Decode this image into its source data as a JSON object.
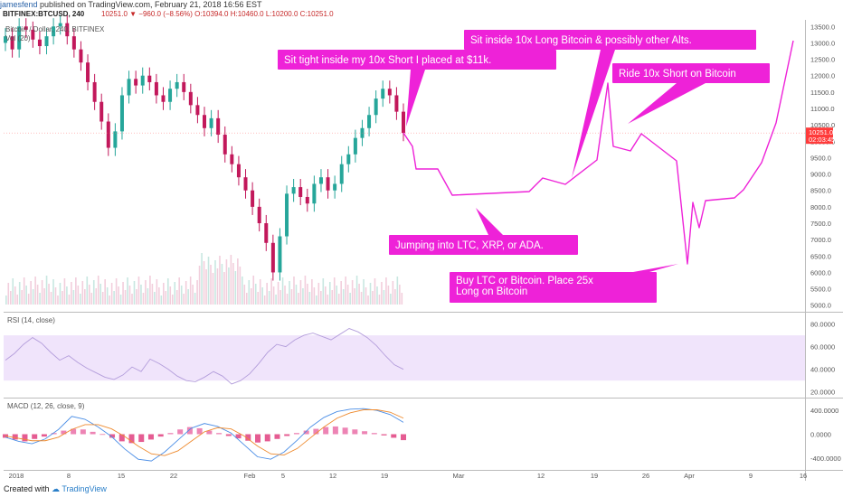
{
  "header": {
    "author": "jamesfend",
    "published": "published on TradingView.com, February 21, 2018 16:56 EST",
    "symbol": "BITFINEX:BTCUSD, 240",
    "stats": "10251.0 ▼ −960.0 (−8.56%) O:10394.0 H:10460.0 L:10200.0 C:10251.0"
  },
  "legend": {
    "series": "Bitcoin / Dollar, 240, BITFINEX",
    "volume": "Vol (20)",
    "rsi": "RSI (14, close)",
    "macd": "MACD (12, 26, close, 9)"
  },
  "price_badge": {
    "value": "10251.0",
    "countdown": "02:03:45"
  },
  "annotations": [
    "Sit tight inside my 10x Short I placed at $11k.",
    "Sit inside 10x Long Bitcoin & possibly other Alts.",
    "Ride 10x Short on Bitcoin",
    "Jumping into LTC, XRP, or ADA.",
    "Buy LTC or Bitcoin. Place 25x Long on Bitcoin"
  ],
  "footer": {
    "created": "Created with",
    "brand": "TradingView"
  },
  "colors": {
    "up": "#26a69a",
    "down": "#c2185b",
    "annotation": "#ee22d8",
    "rsi_band": "#f0e4fb",
    "axis_text": "#555555"
  },
  "chart_data": [
    {
      "type": "line",
      "title": "Bitcoin / Dollar, 240, BITFINEX",
      "y_ticks": [
        13500,
        13000,
        12500,
        12000,
        11500,
        11000,
        10500,
        10000,
        9500,
        9000,
        8500,
        8000,
        7500,
        7000,
        6500,
        6000,
        5500,
        5000
      ],
      "x_tick_labels": [
        "2018",
        "8",
        "15",
        "22",
        "Feb",
        "5",
        "12",
        "19",
        "Mar",
        "12",
        "19",
        "26",
        "Apr",
        "9",
        "16"
      ],
      "ylim": [
        4800,
        13700
      ],
      "last_price": 10251.0,
      "series": [
        {
          "values": [
            13200,
            12800,
            13500,
            13400,
            13100,
            12900,
            13200,
            13500,
            13600,
            13200,
            12800,
            12400,
            11800,
            11200,
            10600,
            9800,
            10300,
            11400,
            11900,
            11700,
            12000,
            11800,
            11400,
            11200,
            11600,
            11800,
            11500,
            11100,
            10800,
            10400,
            10700,
            10200,
            9600,
            9300,
            8900,
            8500,
            8000,
            7500,
            6900,
            6000,
            7100,
            8400,
            8600,
            8300,
            8100,
            8700,
            8900,
            8500,
            8700,
            9300,
            9600,
            10100,
            10400,
            10800,
            11300,
            11600,
            11400,
            10900,
            10251
          ]
        }
      ]
    },
    {
      "type": "line",
      "title": "RSI (14, close)",
      "y_ticks": [
        80,
        60,
        40,
        20
      ],
      "ylim": [
        15,
        90
      ],
      "band": [
        30,
        70
      ],
      "series": [
        {
          "values": [
            48,
            54,
            62,
            68,
            63,
            55,
            48,
            52,
            46,
            41,
            37,
            33,
            31,
            35,
            42,
            38,
            49,
            45,
            40,
            34,
            30,
            29,
            33,
            38,
            34,
            27,
            30,
            36,
            45,
            55,
            62,
            60,
            66,
            70,
            72,
            69,
            66,
            71,
            76,
            73,
            68,
            61,
            52,
            44,
            40
          ]
        }
      ]
    },
    {
      "type": "bar",
      "title": "MACD (12, 26, close, 9)",
      "y_ticks": [
        400,
        0,
        -400
      ],
      "ylim": [
        -600,
        600
      ],
      "histogram": [
        -60,
        -90,
        -120,
        -80,
        -40,
        20,
        60,
        90,
        80,
        40,
        -10,
        -60,
        -120,
        -150,
        -130,
        -90,
        -40,
        20,
        80,
        120,
        100,
        60,
        20,
        -30,
        -70,
        -110,
        -140,
        -120,
        -80,
        -30,
        20,
        60,
        90,
        120,
        130,
        110,
        80,
        50,
        20,
        -20,
        -60,
        -100
      ],
      "series": [
        {
          "name": "MACD",
          "values": [
            -50,
            -120,
            -160,
            -80,
            80,
            300,
            250,
            120,
            -40,
            -250,
            -420,
            -450,
            -300,
            -100,
            100,
            180,
            130,
            20,
            -180,
            -380,
            -420,
            -300,
            -100,
            120,
            280,
            380,
            420,
            430,
            400,
            330,
            200
          ]
        },
        {
          "name": "Signal",
          "values": [
            -30,
            -70,
            -110,
            -110,
            -50,
            80,
            160,
            160,
            90,
            -40,
            -200,
            -330,
            -360,
            -280,
            -120,
            40,
            110,
            90,
            -30,
            -200,
            -330,
            -350,
            -240,
            -60,
            120,
            270,
            360,
            410,
            410,
            370,
            270
          ]
        }
      ]
    }
  ]
}
